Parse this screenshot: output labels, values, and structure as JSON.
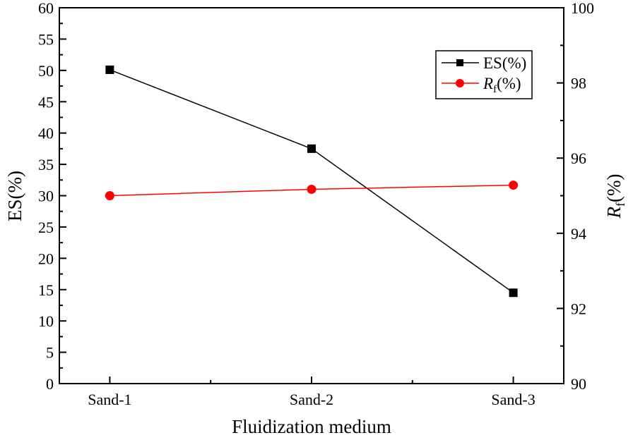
{
  "chart_data": {
    "type": "line",
    "xlabel": "Fluidization medium",
    "categories": [
      "Sand-1",
      "Sand-2",
      "Sand-3"
    ],
    "y_left": {
      "label": "ES(%)",
      "lim": [
        0,
        60
      ],
      "ticks": [
        0,
        5,
        10,
        15,
        20,
        25,
        30,
        35,
        40,
        45,
        50,
        55,
        60
      ]
    },
    "y_right": {
      "label_main": "R",
      "label_sub": "f",
      "label_suffix": "(%)",
      "lim": [
        90,
        100
      ],
      "ticks": [
        90,
        92,
        94,
        96,
        98,
        100
      ]
    },
    "series": [
      {
        "name": "ES(%)",
        "name_main": "ES(%)",
        "name_sub": "",
        "name_suffix": "",
        "axis": "left",
        "color": "#000000",
        "marker": "square",
        "values": [
          50.1,
          37.5,
          14.5
        ]
      },
      {
        "name": "Rf(%)",
        "name_main": "R",
        "name_sub": "f",
        "name_suffix": "(%)",
        "axis": "right",
        "color": "#ff0000",
        "marker": "circle",
        "values": [
          95.0,
          95.17,
          95.28
        ]
      }
    ],
    "legend": "top-right",
    "grid": false
  }
}
